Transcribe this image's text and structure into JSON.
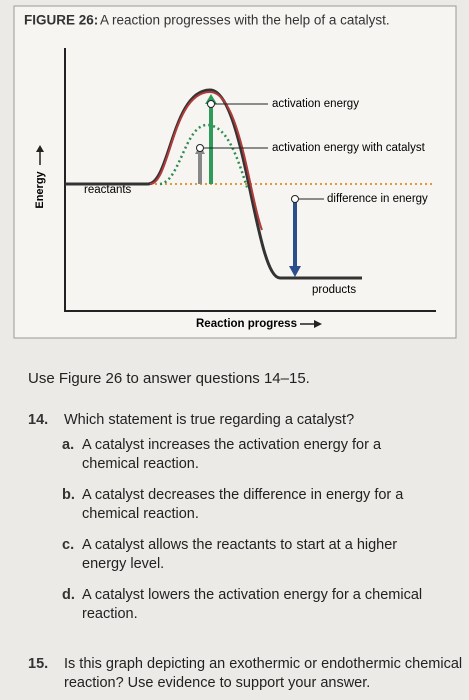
{
  "figure": {
    "label": "FIGURE 26:",
    "caption": "A reaction progresses with the help of a catalyst.",
    "y_axis": "Energy",
    "x_axis": "Reaction progress",
    "labels": {
      "activation": "activation energy",
      "catalyst": "activation energy with catalyst",
      "reactants": "reactants",
      "difference": "difference in energy",
      "products": "products"
    }
  },
  "instruction": "Use Figure 26 to answer questions 14–15.",
  "questions": [
    {
      "number": "14.",
      "text": "Which statement is true regarding a catalyst?",
      "options": [
        {
          "letter": "a.",
          "text": "A catalyst increases the activation energy for a chemical reaction."
        },
        {
          "letter": "b.",
          "text": "A catalyst decreases the difference in energy for a chemical reaction."
        },
        {
          "letter": "c.",
          "text": "A catalyst allows the reactants to start at a higher energy level."
        },
        {
          "letter": "d.",
          "text": "A catalyst lowers the activation energy for a chemical reaction."
        }
      ]
    },
    {
      "number": "15.",
      "text": "Is this graph depicting an exothermic or endothermic chemical reaction? Use evidence to support your answer."
    }
  ]
}
